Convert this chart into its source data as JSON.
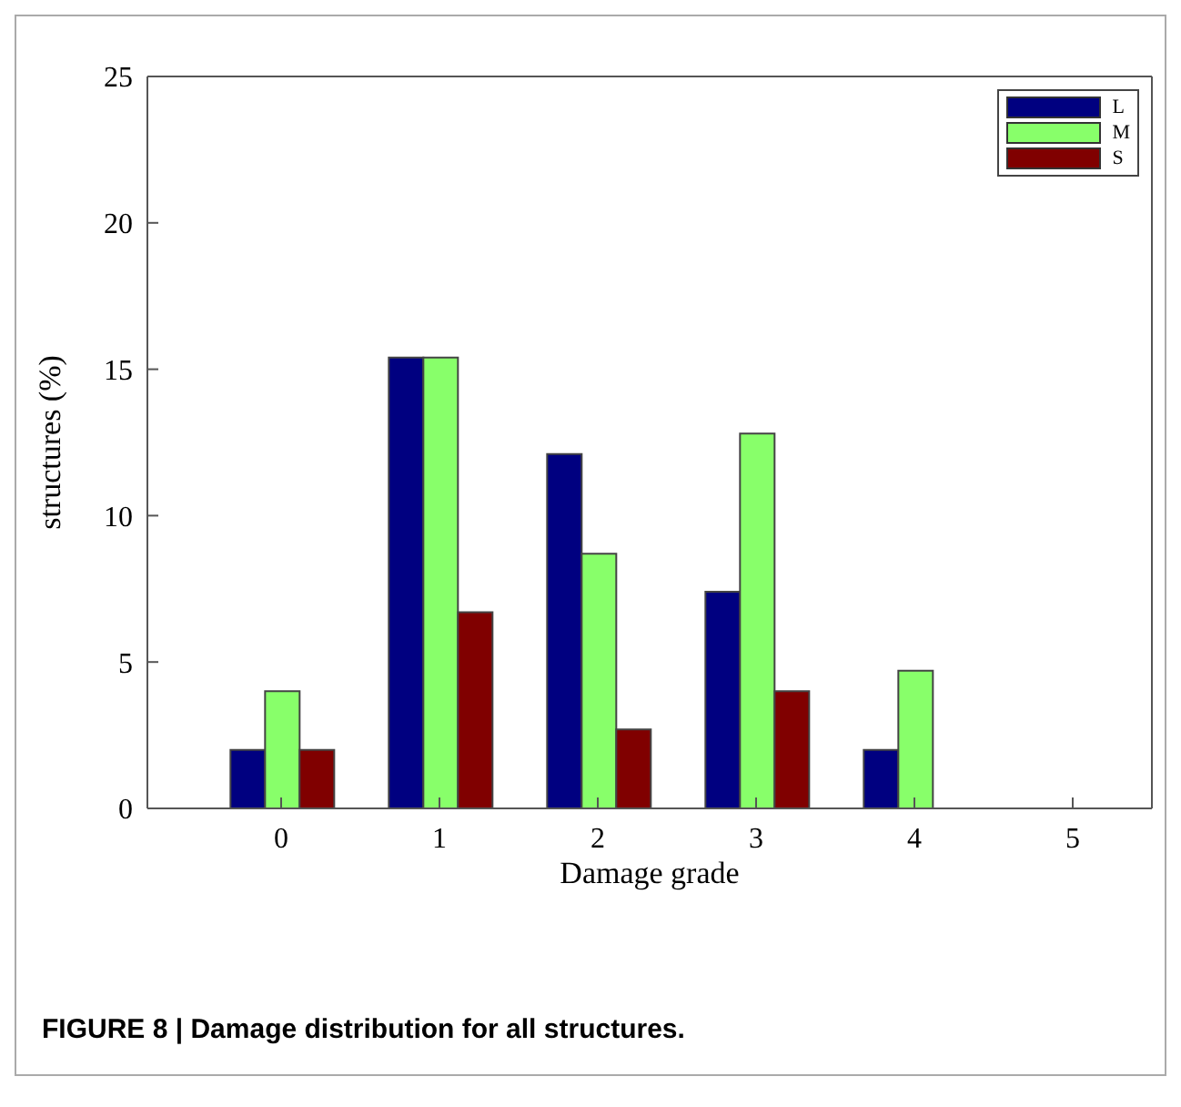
{
  "chart_data": {
    "type": "bar",
    "xlabel": "Damage grade",
    "ylabel": "structures (%)",
    "categories": [
      "0",
      "1",
      "2",
      "3",
      "4",
      "5"
    ],
    "series": [
      {
        "name": "L",
        "color": "#000080",
        "values": [
          2.0,
          15.4,
          12.1,
          7.4,
          2.0,
          0
        ]
      },
      {
        "name": "M",
        "color": "#88ff6a",
        "values": [
          4.0,
          15.4,
          8.7,
          12.8,
          4.7,
          0
        ]
      },
      {
        "name": "S",
        "color": "#800000",
        "values": [
          2.0,
          6.7,
          2.7,
          4.0,
          0,
          0
        ]
      }
    ],
    "ylim": [
      0,
      25
    ],
    "yticks": [
      0,
      5,
      10,
      15,
      20,
      25
    ],
    "legend": "top right",
    "annotations": [
      "FIGURE 8 | Damage distribution for all structures."
    ]
  }
}
